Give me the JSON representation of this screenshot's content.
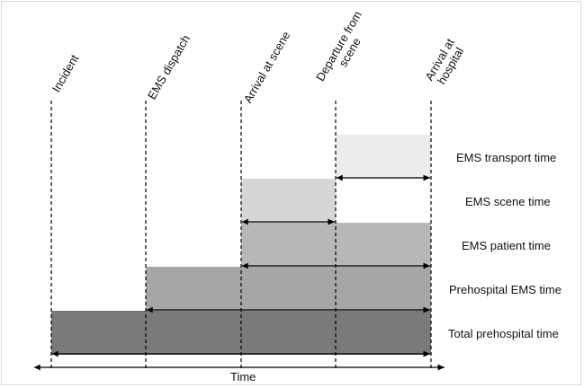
{
  "milestones": [
    "Incident",
    "EMS dispatch",
    "Arrival at scene",
    "Departure from\nscene",
    "Arrival at\nhospital"
  ],
  "intervals": [
    {
      "label": "EMS transport time",
      "from": 3,
      "to": 4,
      "color": "#ececec"
    },
    {
      "label": "EMS scene time",
      "from": 2,
      "to": 3,
      "color": "#d6d6d6"
    },
    {
      "label": "EMS patient time",
      "from": 2,
      "to": 4,
      "color": "#b7b7b7"
    },
    {
      "label": "Prehospital EMS time",
      "from": 1,
      "to": 4,
      "color": "#a6a6a6"
    },
    {
      "label": "Total prehospital time",
      "from": 0,
      "to": 4,
      "color": "#7a7a7a"
    }
  ],
  "axis": {
    "label": "Time"
  }
}
